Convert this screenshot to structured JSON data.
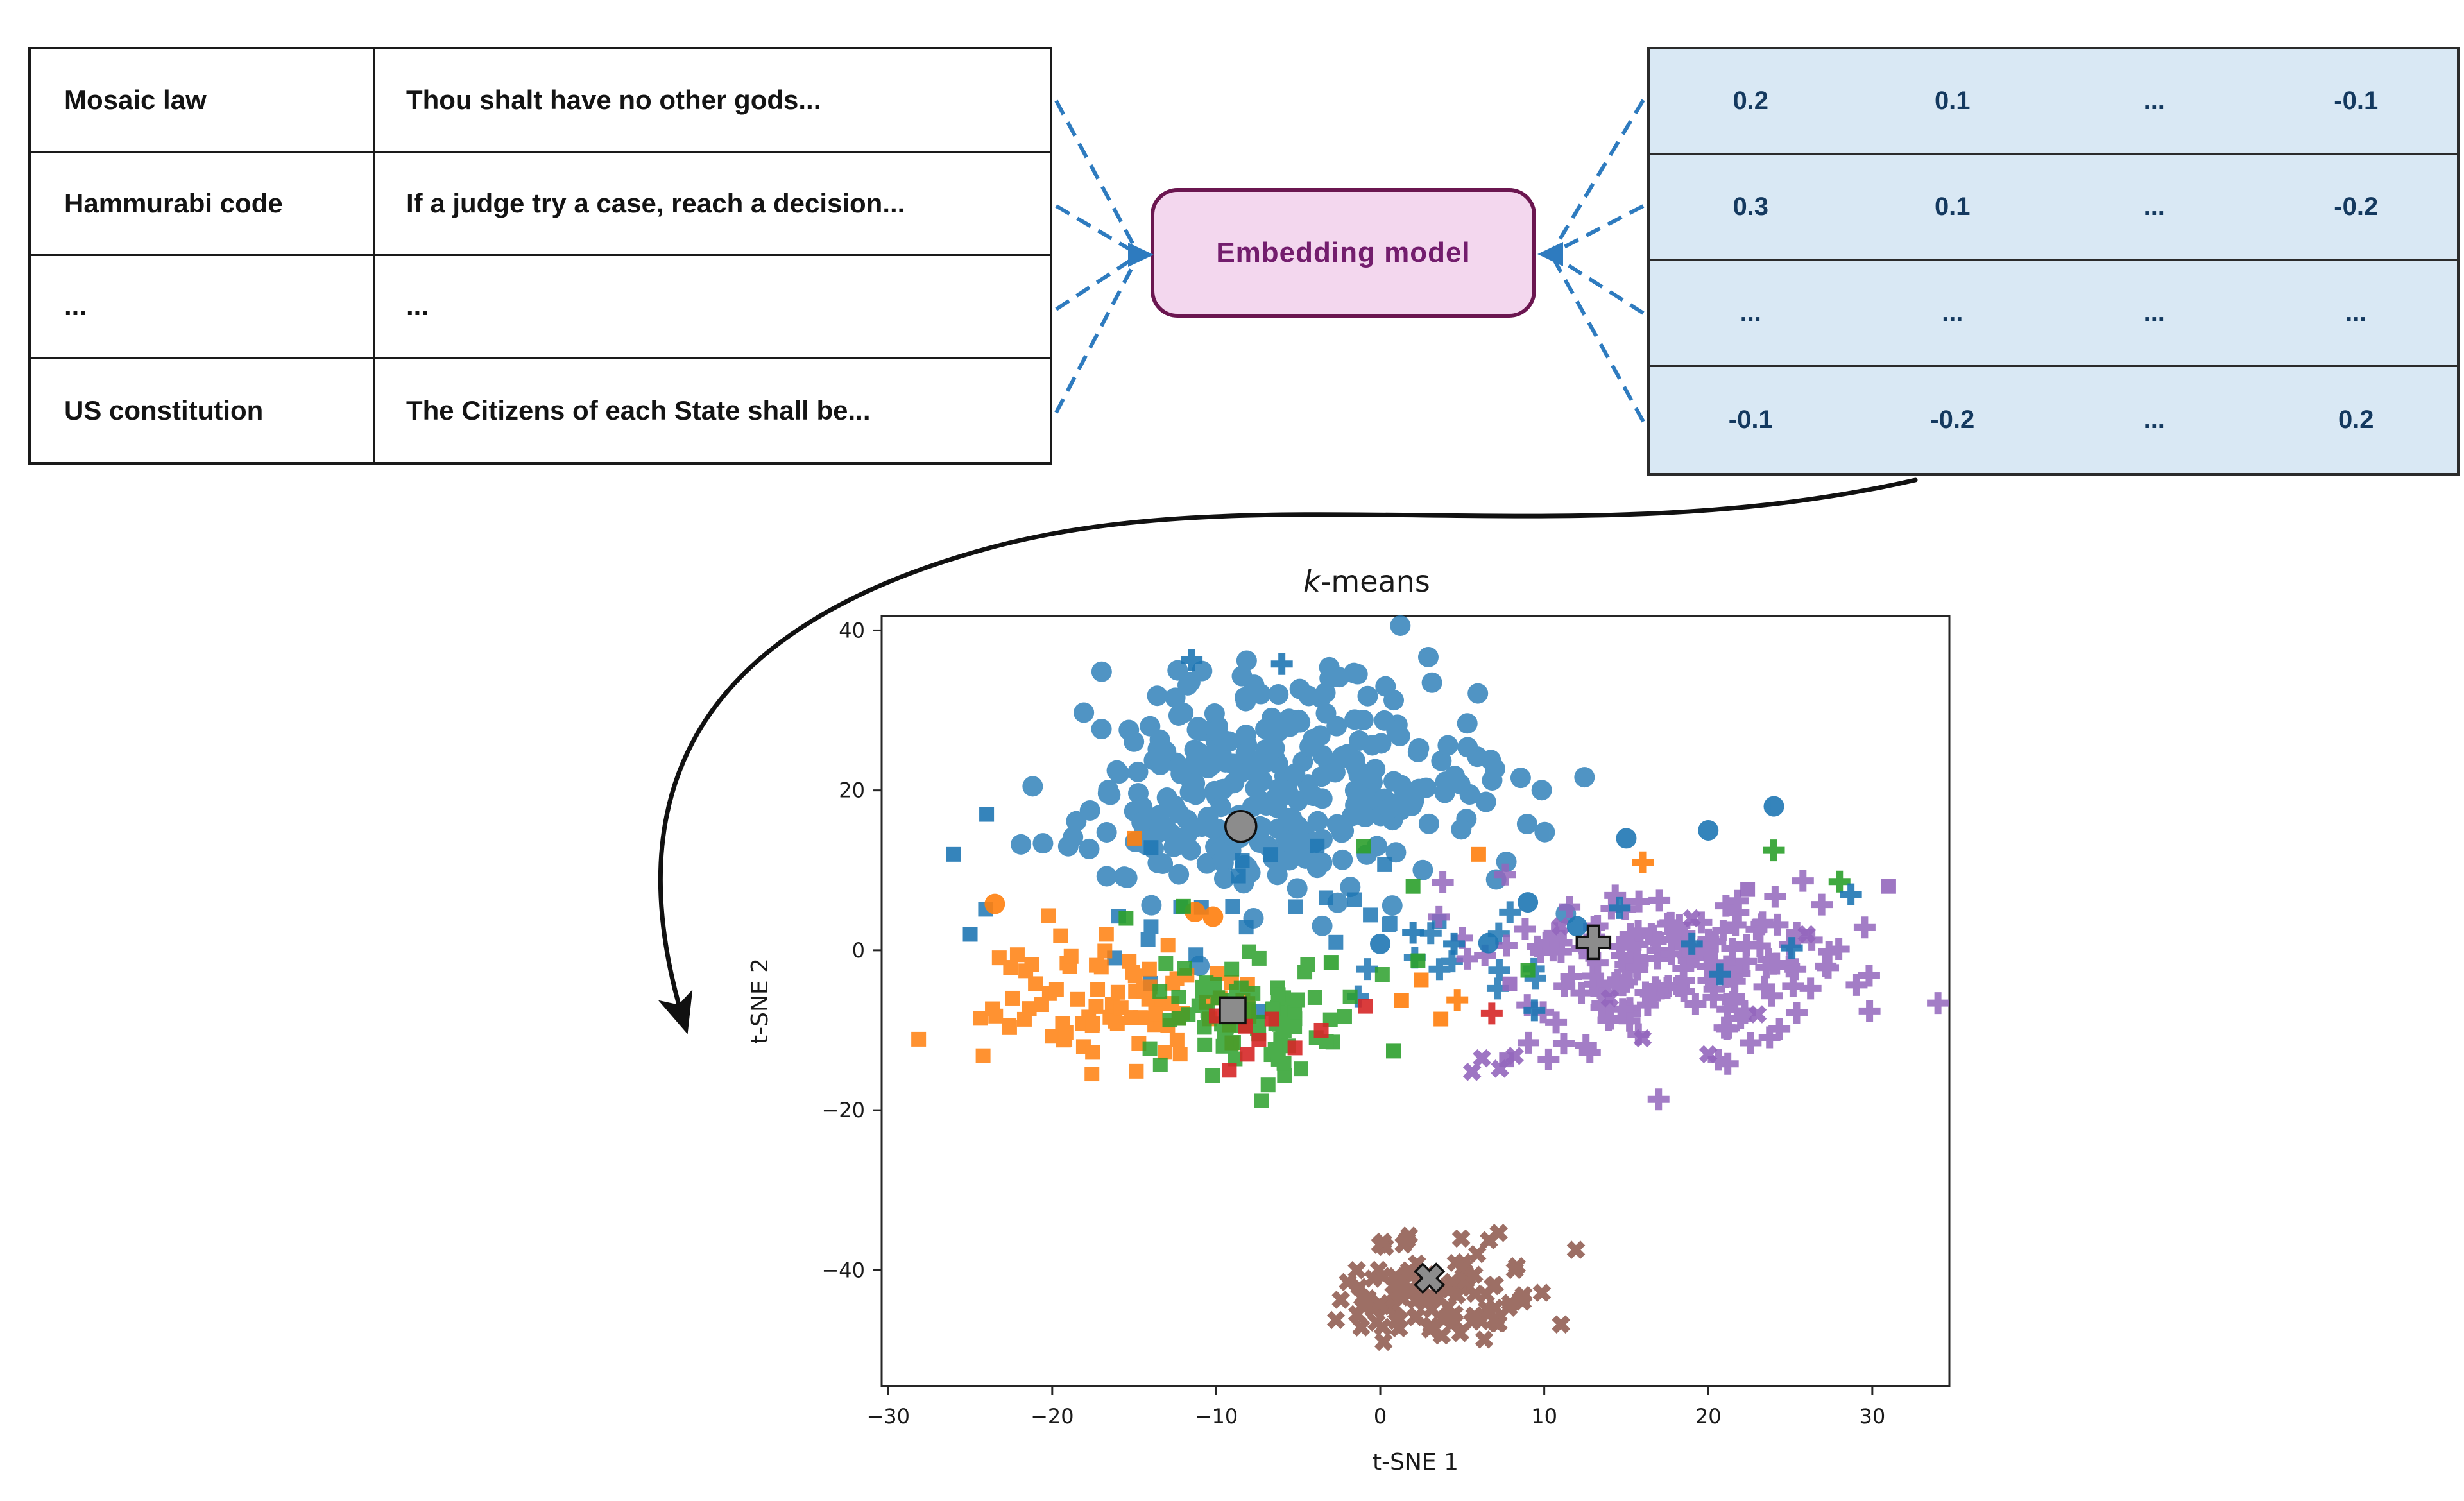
{
  "source_table": {
    "rows": [
      {
        "title": "Mosaic law",
        "excerpt": "Thou shalt have no other gods..."
      },
      {
        "title": "Hammurabi code",
        "excerpt": "If a judge try a case, reach a decision..."
      },
      {
        "title": "...",
        "excerpt": "..."
      },
      {
        "title": "US constitution",
        "excerpt": "The Citizens of each State shall be..."
      }
    ]
  },
  "embedding_box": {
    "label": "Embedding model",
    "fill": "#f3d7ee",
    "border": "#6b1650",
    "text_color": "#731d6d"
  },
  "matrix": {
    "fill": "#d9e8f4",
    "text_color": "#14395f",
    "rows": [
      [
        "0.2",
        "0.1",
        "...",
        "-0.1"
      ],
      [
        "0.3",
        "0.1",
        "...",
        "-0.2"
      ],
      [
        "...",
        "...",
        "...",
        "..."
      ],
      [
        "-0.1",
        "-0.2",
        "...",
        "0.2"
      ]
    ]
  },
  "arrow_color": "#2e7bbf",
  "flow_arrow_color": "#111111",
  "chart_data": {
    "type": "scatter",
    "title": "k-means",
    "title_italic_len": 1,
    "xlabel": "t-SNE 1",
    "ylabel": "t-SNE 2",
    "xlim": [
      -30.4,
      34.7
    ],
    "ylim": [
      -54.5,
      41.8
    ],
    "xticks": [
      -30,
      -20,
      -10,
      0,
      10,
      20,
      30
    ],
    "yticks": [
      40,
      20,
      0,
      -20,
      -40
    ],
    "grid": false,
    "legend": "none",
    "seed": 42,
    "point_alpha": 0.8,
    "clusters": [
      {
        "name": "blue-circles",
        "marker": "circle",
        "color": "#1f77b4",
        "center": [
          -6.5,
          21
        ],
        "std": [
          6.8,
          7.0
        ],
        "n": 300
      },
      {
        "name": "blue-squares",
        "marker": "square",
        "color": "#1f77b4",
        "center": [
          -7,
          4
        ],
        "std": [
          8,
          4
        ],
        "n": 26
      },
      {
        "name": "blue-plus",
        "marker": "plus",
        "color": "#1f77b4",
        "center": [
          3,
          -1.5
        ],
        "std": [
          4,
          3
        ],
        "n": 12
      },
      {
        "name": "orange-squares",
        "marker": "square",
        "color": "#ff7f0e",
        "center": [
          -17.5,
          -6.5
        ],
        "std": [
          5.0,
          4.0
        ],
        "n": 88
      },
      {
        "name": "green-squares",
        "marker": "square",
        "color": "#2ca02c",
        "center": [
          -8,
          -9
        ],
        "std": [
          3.0,
          3.6
        ],
        "n": 82
      },
      {
        "name": "purple-plus",
        "marker": "plus",
        "color": "#9467bd",
        "center": [
          17.5,
          -2
        ],
        "std": [
          5.5,
          5.3
        ],
        "n": 180
      },
      {
        "name": "brown-x",
        "marker": "x",
        "color": "#8c564b",
        "center": [
          3.5,
          -43
        ],
        "std": [
          3.2,
          3.6
        ],
        "n": 105
      }
    ],
    "extra_points": [
      {
        "name": "red-squares",
        "marker": "square",
        "color": "#d62728",
        "points": [
          [
            -8.2,
            -9.5
          ],
          [
            -7.4,
            -11.2
          ],
          [
            -8.1,
            -13
          ],
          [
            -9.2,
            -15
          ],
          [
            -6.6,
            -8.6
          ],
          [
            -10,
            -8.2
          ],
          [
            -5.2,
            -12.2
          ],
          [
            -0.9,
            -7
          ],
          [
            -3.6,
            -10
          ]
        ]
      },
      {
        "name": "red-plus",
        "marker": "plus",
        "color": "#d62728",
        "points": [
          [
            6.8,
            -7.9
          ]
        ]
      },
      {
        "name": "orange-circles",
        "marker": "circle",
        "color": "#ff7f0e",
        "points": [
          [
            -23.5,
            5.8
          ],
          [
            -11.3,
            4.8
          ],
          [
            -10.2,
            4.2
          ]
        ]
      },
      {
        "name": "orange-square-strays",
        "marker": "square",
        "color": "#ff7f0e",
        "points": [
          [
            -15,
            14
          ],
          [
            6,
            12
          ],
          [
            1.3,
            -6.3
          ],
          [
            2.5,
            -3.7
          ],
          [
            3.7,
            -8.6
          ]
        ]
      },
      {
        "name": "orange-plus",
        "marker": "plus",
        "color": "#ff7f0e",
        "points": [
          [
            16,
            11
          ],
          [
            4.7,
            -6.2
          ]
        ]
      },
      {
        "name": "green-square-strays",
        "marker": "square",
        "color": "#2ca02c",
        "points": [
          [
            -15.5,
            4
          ],
          [
            -12,
            5.5
          ],
          [
            -1,
            13
          ],
          [
            2,
            8
          ],
          [
            2.3,
            -1.3
          ],
          [
            0.8,
            -12.6
          ],
          [
            9,
            -2.5
          ],
          [
            -3,
            -1.5
          ]
        ]
      },
      {
        "name": "green-plus",
        "marker": "plus",
        "color": "#2ca02c",
        "points": [
          [
            24,
            12.5
          ],
          [
            28,
            8.6
          ]
        ]
      },
      {
        "name": "purple-squares",
        "marker": "square",
        "color": "#9467bd",
        "points": [
          [
            7.7,
            -13.7
          ],
          [
            7.9,
            -4.2
          ],
          [
            22.4,
            7.6
          ],
          [
            31,
            8
          ]
        ]
      },
      {
        "name": "purple-x",
        "marker": "x",
        "color": "#9467bd",
        "points": [
          [
            11,
            3
          ],
          [
            14,
            -6
          ],
          [
            19,
            4
          ],
          [
            23,
            -8
          ],
          [
            26,
            2
          ],
          [
            16,
            -11
          ],
          [
            20,
            -13
          ],
          [
            6.2,
            -13.5
          ],
          [
            7.3,
            -14.8
          ],
          [
            5.6,
            -15.2
          ],
          [
            8.2,
            -13.2
          ]
        ]
      },
      {
        "name": "blue-circle-strays",
        "marker": "circle",
        "color": "#1f77b4",
        "points": [
          [
            9,
            6
          ],
          [
            12,
            3
          ],
          [
            15,
            14
          ],
          [
            20,
            15
          ],
          [
            24,
            18
          ],
          [
            6.6,
            0.9
          ],
          [
            0,
            0.8
          ]
        ]
      },
      {
        "name": "blue-plus-strays",
        "marker": "plus",
        "color": "#1f77b4",
        "points": [
          [
            9.4,
            -7.5
          ],
          [
            4.5,
            0.8
          ],
          [
            2,
            2.2
          ],
          [
            14.6,
            5.3
          ],
          [
            19,
            0.8
          ],
          [
            20.7,
            -3
          ],
          [
            25.1,
            0.3
          ],
          [
            28.7,
            7
          ],
          [
            -11.5,
            36.3
          ],
          [
            -6,
            35.8
          ]
        ]
      },
      {
        "name": "blue-square-strays",
        "marker": "square",
        "color": "#1f77b4",
        "points": [
          [
            -26,
            12
          ],
          [
            -24,
            17
          ],
          [
            -25,
            2
          ]
        ]
      }
    ],
    "centroids": [
      {
        "marker": "circle",
        "xy": [
          -8.5,
          15.5
        ]
      },
      {
        "marker": "square",
        "xy": [
          -9,
          -7.5
        ]
      },
      {
        "marker": "plus",
        "xy": [
          13,
          1
        ]
      },
      {
        "marker": "x",
        "xy": [
          3,
          -41
        ]
      }
    ],
    "centroid_color": "#8c8c8c",
    "centroid_edge": "#111111"
  }
}
